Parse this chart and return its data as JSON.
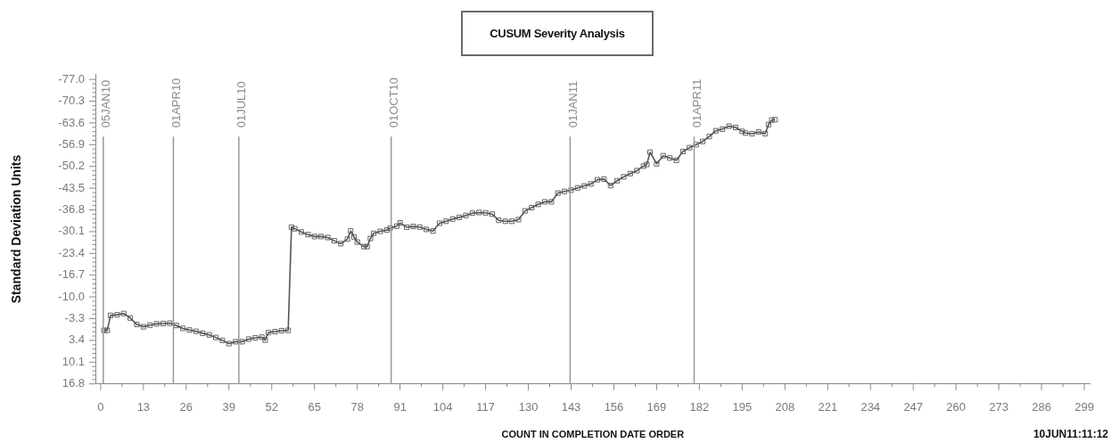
{
  "chart_data": {
    "type": "line",
    "title": "CUSUM Severity Analysis",
    "xlabel": "COUNT IN COMPLETION DATE ORDER",
    "ylabel": "Standard Deviation Units",
    "annotations": [
      "10JUN11:11:12"
    ],
    "x": [
      1,
      2,
      3,
      5,
      7,
      9,
      11,
      13,
      15,
      17,
      19,
      21,
      23,
      25,
      27,
      29,
      31,
      33,
      35,
      37,
      39,
      41,
      43,
      45,
      47,
      49,
      50,
      51,
      53,
      55,
      57,
      58,
      59,
      61,
      63,
      65,
      67,
      69,
      71,
      73,
      75,
      76,
      77,
      78,
      80,
      81,
      82,
      83,
      85,
      87,
      88,
      90,
      91,
      93,
      95,
      97,
      99,
      101,
      103,
      105,
      107,
      109,
      111,
      113,
      115,
      117,
      119,
      121,
      123,
      125,
      127,
      129,
      131,
      133,
      135,
      137,
      139,
      141,
      143,
      145,
      147,
      149,
      151,
      153,
      155,
      157,
      159,
      161,
      163,
      165,
      166,
      167,
      169,
      171,
      173,
      175,
      177,
      179,
      181,
      183,
      185,
      187,
      189,
      191,
      193,
      195,
      196,
      198,
      200,
      202,
      203,
      204,
      205
    ],
    "values": [
      0.3,
      0.3,
      -4.3,
      -4.5,
      -4.9,
      -3.5,
      -1.5,
      -0.8,
      -1.3,
      -1.7,
      -1.8,
      -1.9,
      -1.2,
      -0.3,
      0.2,
      0.6,
      1.2,
      1.7,
      2.5,
      3.4,
      4.4,
      3.8,
      3.8,
      3.0,
      2.6,
      2.4,
      3.3,
      1.0,
      0.7,
      0.4,
      0.3,
      -31.5,
      -31.0,
      -30.0,
      -29.2,
      -28.6,
      -28.6,
      -28.3,
      -27.3,
      -26.4,
      -27.8,
      -30.3,
      -28.5,
      -26.9,
      -25.5,
      -25.5,
      -28.0,
      -29.6,
      -30.2,
      -30.6,
      -31.2,
      -31.8,
      -32.8,
      -31.5,
      -31.7,
      -31.5,
      -30.8,
      -30.3,
      -32.7,
      -33.3,
      -34.0,
      -34.5,
      -35.1,
      -35.8,
      -36.0,
      -35.9,
      -35.5,
      -33.6,
      -33.3,
      -33.3,
      -33.8,
      -36.5,
      -37.5,
      -38.5,
      -39.3,
      -39.3,
      -42.0,
      -42.5,
      -42.9,
      -43.6,
      -44.2,
      -44.8,
      -46.1,
      -46.3,
      -44.3,
      -45.8,
      -47.0,
      -48.0,
      -48.9,
      -50.3,
      -50.8,
      -54.6,
      -51.0,
      -53.5,
      -52.8,
      -52.1,
      -54.8,
      -56.0,
      -56.9,
      -57.9,
      -59.4,
      -61.2,
      -61.7,
      -62.6,
      -62.2,
      -61.0,
      -60.5,
      -60.3,
      -60.8,
      -60.3,
      -63.1,
      -64.5,
      -64.6
    ],
    "color": "#555555",
    "marker": "square",
    "line_style": "solid",
    "xlim": [
      -1.6,
      300.8
    ],
    "xticks": [
      0,
      {
        "value": 6.5,
        "label": null
      },
      13,
      {
        "value": 19.5,
        "label": null
      },
      26,
      {
        "value": 32.5,
        "label": null
      },
      39,
      {
        "value": 45.5,
        "label": null
      },
      52,
      {
        "value": 58.5,
        "label": null
      },
      65,
      {
        "value": 71.5,
        "label": null
      },
      78,
      {
        "value": 84.5,
        "label": null
      },
      91,
      {
        "value": 97.5,
        "label": null
      },
      104,
      {
        "value": 110.5,
        "label": null
      },
      117,
      {
        "value": 123.5,
        "label": null
      },
      130,
      {
        "value": 136.5,
        "label": null
      },
      143,
      {
        "value": 149.5,
        "label": null
      },
      156,
      {
        "value": 162.5,
        "label": null
      },
      169,
      {
        "value": 175.5,
        "label": null
      },
      182,
      {
        "value": 188.5,
        "label": null
      },
      195,
      {
        "value": 201.5,
        "label": null
      },
      208,
      {
        "value": 214.5,
        "label": null
      },
      221,
      {
        "value": 227.5,
        "label": null
      },
      234,
      {
        "value": 240.5,
        "label": null
      },
      247,
      {
        "value": 253.5,
        "label": null
      },
      260,
      {
        "value": 266.5,
        "label": null
      },
      273,
      {
        "value": 279.5,
        "label": null
      },
      286,
      {
        "value": 292.5,
        "label": null
      },
      299
    ],
    "ylim": [
      16.8,
      -78.6
    ],
    "yticks": [
      {
        "value": -77.0,
        "label": "-77.0"
      },
      {
        "value": -75.66,
        "label": null
      },
      {
        "value": -74.32,
        "label": null
      },
      {
        "value": -72.98,
        "label": null
      },
      {
        "value": -71.64,
        "label": null
      },
      -70.3,
      {
        "value": -68.96,
        "label": null
      },
      {
        "value": -67.62,
        "label": null
      },
      {
        "value": -66.28,
        "label": null
      },
      {
        "value": -64.94,
        "label": null
      },
      -63.6,
      {
        "value": -62.26,
        "label": null
      },
      {
        "value": -60.92,
        "label": null
      },
      {
        "value": -59.58,
        "label": null
      },
      {
        "value": -58.24,
        "label": null
      },
      -56.9,
      {
        "value": -55.56,
        "label": null
      },
      {
        "value": -54.22,
        "label": null
      },
      {
        "value": -52.88,
        "label": null
      },
      {
        "value": -51.54,
        "label": null
      },
      -50.2,
      {
        "value": -48.86,
        "label": null
      },
      {
        "value": -47.52,
        "label": null
      },
      {
        "value": -46.18,
        "label": null
      },
      {
        "value": -44.84,
        "label": null
      },
      -43.5,
      {
        "value": -42.16,
        "label": null
      },
      {
        "value": -40.82,
        "label": null
      },
      {
        "value": -39.48,
        "label": null
      },
      {
        "value": -38.14,
        "label": null
      },
      -36.8,
      {
        "value": -35.46,
        "label": null
      },
      {
        "value": -34.12,
        "label": null
      },
      {
        "value": -32.78,
        "label": null
      },
      {
        "value": -31.44,
        "label": null
      },
      -30.1,
      {
        "value": -28.76,
        "label": null
      },
      {
        "value": -27.42,
        "label": null
      },
      {
        "value": -26.08,
        "label": null
      },
      {
        "value": -24.74,
        "label": null
      },
      -23.4,
      {
        "value": -22.06,
        "label": null
      },
      {
        "value": -20.72,
        "label": null
      },
      {
        "value": -19.38,
        "label": null
      },
      {
        "value": -18.04,
        "label": null
      },
      -16.7,
      {
        "value": -15.36,
        "label": null
      },
      {
        "value": -14.02,
        "label": null
      },
      {
        "value": -12.68,
        "label": null
      },
      {
        "value": -11.34,
        "label": null
      },
      {
        "value": -10.0,
        "label": "-10.0"
      },
      {
        "value": -8.66,
        "label": null
      },
      {
        "value": -7.32,
        "label": null
      },
      {
        "value": -5.98,
        "label": null
      },
      {
        "value": -4.64,
        "label": null
      },
      -3.3,
      {
        "value": -1.96,
        "label": null
      },
      {
        "value": -0.62,
        "label": null
      },
      {
        "value": 0.72,
        "label": null
      },
      {
        "value": 2.06,
        "label": null
      },
      3.4,
      {
        "value": 4.74,
        "label": null
      },
      {
        "value": 6.08,
        "label": null
      },
      {
        "value": 7.42,
        "label": null
      },
      {
        "value": 8.76,
        "label": null
      },
      10.1,
      {
        "value": 11.44,
        "label": null
      },
      {
        "value": 12.78,
        "label": null
      },
      {
        "value": 14.12,
        "label": null
      },
      {
        "value": 15.46,
        "label": null
      },
      16.8
    ],
    "ref_lines": [
      {
        "axis": "x",
        "value": 0.8,
        "label": "05JAN10",
        "color": "#999999"
      },
      {
        "axis": "x",
        "value": 22.1,
        "label": "01APR10",
        "color": "#999999"
      },
      {
        "axis": "x",
        "value": 42,
        "label": "01JUL10",
        "color": "#999999"
      },
      {
        "axis": "x",
        "value": 88.3,
        "label": "01OCT10",
        "color": "#999999"
      },
      {
        "axis": "x",
        "value": 142.7,
        "label": "01JAN11",
        "color": "#999999"
      },
      {
        "axis": "x",
        "value": 180.4,
        "label": "01APR11",
        "color": "#999999"
      }
    ]
  }
}
